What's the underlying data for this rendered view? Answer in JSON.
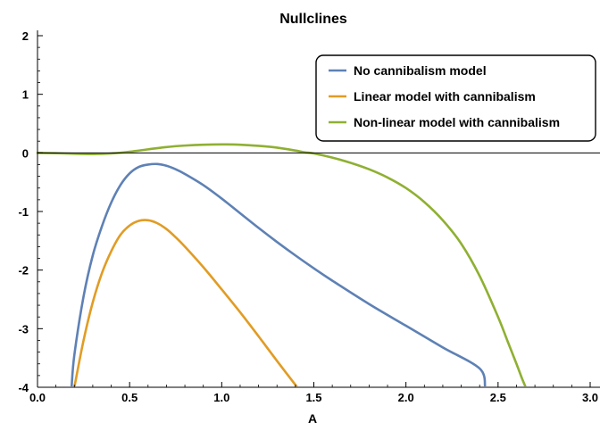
{
  "chart_data": {
    "type": "line",
    "title": "Nullclines",
    "xlabel": "A",
    "ylabel": "",
    "xlim": [
      0,
      3
    ],
    "ylim": [
      -4,
      2
    ],
    "x_ticks": [
      0.0,
      0.5,
      1.0,
      1.5,
      2.0,
      2.5,
      3.0
    ],
    "x_tick_labels": [
      "0.0",
      "0.5",
      "1.0",
      "1.5",
      "2.0",
      "2.5",
      "3.0"
    ],
    "y_ticks": [
      -4,
      -3,
      -2,
      -1,
      0,
      1,
      2
    ],
    "y_tick_labels": [
      "-4",
      "-3",
      "-2",
      "-1",
      "0",
      "1",
      "2"
    ],
    "grid": false,
    "zero_line": true,
    "legend_position": "top-right",
    "series": [
      {
        "name": "No cannibalism model",
        "color": "#5e81b5",
        "x": [
          0.185,
          0.2,
          0.25,
          0.3,
          0.35,
          0.4,
          0.45,
          0.5,
          0.55,
          0.6,
          0.65,
          0.7,
          0.75,
          0.8,
          0.9,
          1.0,
          1.1,
          1.2,
          1.3,
          1.4,
          1.5,
          1.6,
          1.8,
          2.0,
          2.2,
          2.4,
          2.43
        ],
        "values": [
          -4.0,
          -3.45,
          -2.45,
          -1.75,
          -1.25,
          -0.85,
          -0.55,
          -0.35,
          -0.24,
          -0.2,
          -0.19,
          -0.22,
          -0.28,
          -0.36,
          -0.55,
          -0.78,
          -1.03,
          -1.28,
          -1.52,
          -1.75,
          -1.97,
          -2.18,
          -2.58,
          -2.95,
          -3.32,
          -3.68,
          -4.0
        ]
      },
      {
        "name": "Linear model with cannibalism",
        "color": "#e19c24",
        "x": [
          0.2,
          0.25,
          0.3,
          0.35,
          0.4,
          0.45,
          0.5,
          0.55,
          0.6,
          0.65,
          0.7,
          0.75,
          0.8,
          0.9,
          1.0,
          1.1,
          1.2,
          1.3,
          1.41
        ],
        "values": [
          -4.0,
          -3.2,
          -2.55,
          -2.05,
          -1.68,
          -1.4,
          -1.24,
          -1.16,
          -1.15,
          -1.2,
          -1.3,
          -1.44,
          -1.6,
          -1.95,
          -2.33,
          -2.72,
          -3.13,
          -3.55,
          -4.0
        ]
      },
      {
        "name": "Non-linear model with cannibalism",
        "color": "#8fb032",
        "x": [
          0.0,
          0.1,
          0.2,
          0.3,
          0.4,
          0.5,
          0.6,
          0.7,
          0.8,
          0.9,
          1.0,
          1.1,
          1.2,
          1.3,
          1.4,
          1.45,
          1.5,
          1.6,
          1.7,
          1.8,
          1.9,
          2.0,
          2.1,
          2.2,
          2.3,
          2.4,
          2.5,
          2.55,
          2.6,
          2.63,
          2.65
        ],
        "values": [
          0.0,
          -0.005,
          -0.015,
          -0.02,
          -0.01,
          0.02,
          0.06,
          0.1,
          0.125,
          0.14,
          0.145,
          0.14,
          0.12,
          0.09,
          0.04,
          0.01,
          -0.01,
          -0.08,
          -0.17,
          -0.28,
          -0.42,
          -0.6,
          -0.84,
          -1.15,
          -1.55,
          -2.1,
          -2.8,
          -3.2,
          -3.6,
          -3.85,
          -4.0
        ]
      }
    ]
  }
}
